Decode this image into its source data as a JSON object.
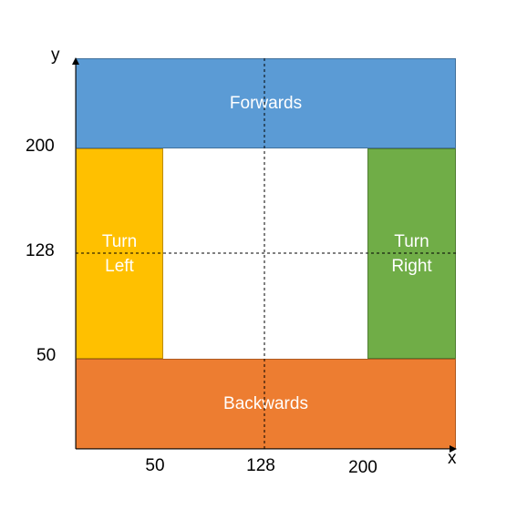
{
  "zones": {
    "forwards": {
      "label": "Forwards",
      "color": "#5b9bd5"
    },
    "backwards": {
      "label": "Backwards",
      "color": "#ed7d31"
    },
    "turn_left": {
      "line1": "Turn",
      "line2": "Left",
      "color": "#ffc000"
    },
    "turn_right": {
      "line1": "Turn",
      "line2": "Right",
      "color": "#70ad47"
    }
  },
  "axes": {
    "x_label": "x",
    "y_label": "y",
    "y_ticks": [
      "200",
      "128",
      "50"
    ],
    "x_ticks": [
      "50",
      "128",
      "200"
    ]
  }
}
